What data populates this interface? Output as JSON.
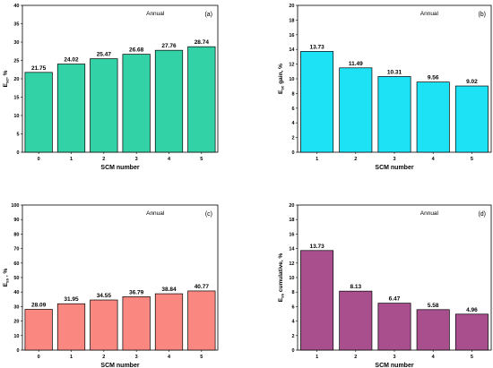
{
  "chart_data": [
    {
      "type": "bar",
      "panel_label": "(a)",
      "annotation": "Annual",
      "xlabel": "SCM number",
      "ylabel": {
        "main": "E",
        "sub": "sc",
        "rest": ", %"
      },
      "categories": [
        "0",
        "1",
        "2",
        "3",
        "4",
        "5"
      ],
      "values": [
        21.75,
        24.02,
        25.47,
        26.68,
        27.76,
        28.74
      ],
      "value_labels": [
        "21.75",
        "24.02",
        "25.47",
        "26.68",
        "27.76",
        "28.74"
      ],
      "ylim": [
        0,
        40
      ],
      "yticks": [
        0,
        5,
        10,
        15,
        20,
        25,
        30,
        35,
        40
      ],
      "grid": false,
      "bar_color": "#33d1a6"
    },
    {
      "type": "bar",
      "panel_label": "(b)",
      "annotation": "Annual",
      "xlabel": "SCM number",
      "ylabel": {
        "main": "E",
        "sub": "sc",
        "rest": " gain, %"
      },
      "categories": [
        "1",
        "2",
        "3",
        "4",
        "5"
      ],
      "values": [
        13.73,
        11.49,
        10.31,
        9.56,
        9.02
      ],
      "value_labels": [
        "13.73",
        "11.49",
        "10.31",
        "9.56",
        "9.02"
      ],
      "ylim": [
        0,
        20
      ],
      "yticks": [
        0,
        2,
        4,
        6,
        8,
        10,
        12,
        14,
        16,
        18,
        20
      ],
      "grid": false,
      "bar_color": "#1de2f5"
    },
    {
      "type": "bar",
      "panel_label": "(c)",
      "annotation": "Annual",
      "xlabel": "SCM number",
      "ylabel": {
        "main": "E",
        "sub": "ss",
        "rest": " , %"
      },
      "categories": [
        "0",
        "1",
        "2",
        "3",
        "4",
        "5"
      ],
      "values": [
        28.09,
        31.95,
        34.55,
        36.79,
        38.84,
        40.77
      ],
      "value_labels": [
        "28.09",
        "31.95",
        "34.55",
        "36.79",
        "38.84",
        "40.77"
      ],
      "ylim": [
        0,
        100
      ],
      "yticks": [
        0,
        10,
        20,
        30,
        40,
        50,
        60,
        70,
        80,
        90,
        100
      ],
      "grid": false,
      "bar_color": "#fb8880"
    },
    {
      "type": "bar",
      "panel_label": "(d)",
      "annotation": "Annual",
      "xlabel": "SCM number",
      "ylabel": {
        "main": "E",
        "sub": "ss",
        "rest": " cumulative, %"
      },
      "categories": [
        "1",
        "2",
        "3",
        "4",
        "5"
      ],
      "values": [
        13.73,
        8.13,
        6.47,
        5.58,
        4.96
      ],
      "value_labels": [
        "13.73",
        "8.13",
        "6.47",
        "5.58",
        "4.96"
      ],
      "ylim": [
        0,
        20
      ],
      "yticks": [
        0,
        2,
        4,
        6,
        8,
        10,
        12,
        14,
        16,
        18,
        20
      ],
      "grid": false,
      "bar_color": "#a94f8e"
    }
  ]
}
